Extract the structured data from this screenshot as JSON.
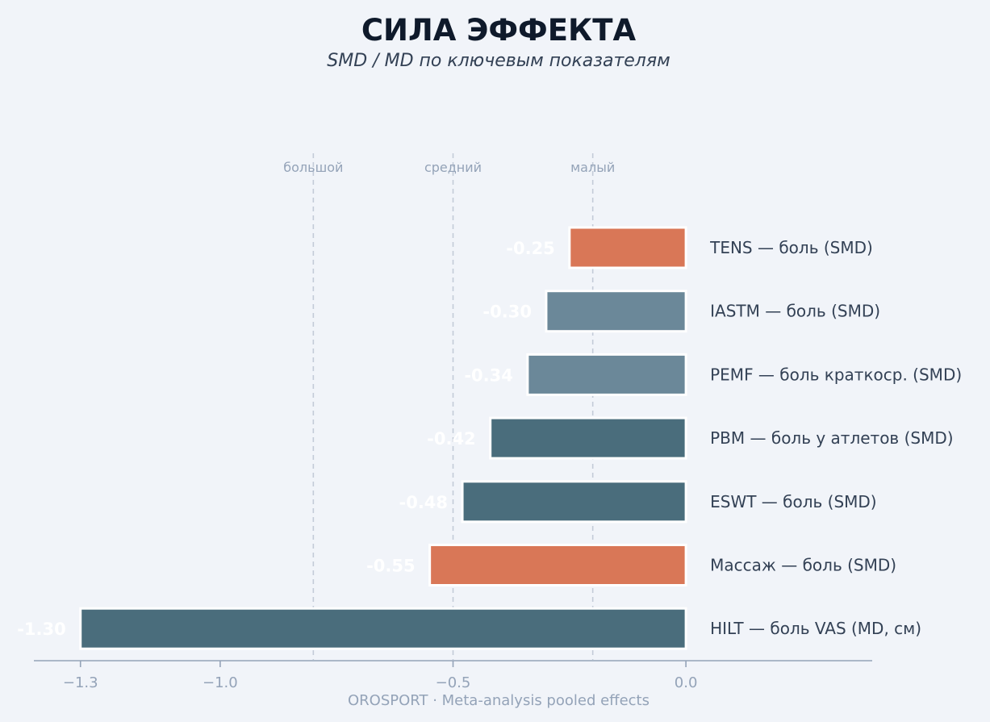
{
  "chart_data": {
    "type": "bar",
    "orientation": "horizontal",
    "title": "СИЛА ЭФФЕКТА",
    "subtitle": "SMD / MD по ключевым показателям",
    "categories": [
      "TENS — боль (SMD)",
      "IASTM — боль (SMD)",
      "PEMF — боль краткоср. (SMD)",
      "PBM — боль у атлетов (SMD)",
      "ESWT — боль (SMD)",
      "Массаж — боль (SMD)",
      "HILT — боль VAS (MD, см)"
    ],
    "values": [
      -0.25,
      -0.3,
      -0.34,
      -0.42,
      -0.48,
      -0.55,
      -1.3
    ],
    "value_labels": [
      "-0.25",
      "-0.30",
      "-0.34",
      "-0.42",
      "-0.48",
      "-0.55",
      "-1.30"
    ],
    "colors": [
      "#d97757",
      "#6b8899",
      "#6b8899",
      "#4a6d7c",
      "#4a6d7c",
      "#d97757",
      "#4a6d7c"
    ],
    "xlim": [
      -1.4,
      0.4
    ],
    "xticks": [
      -1.3,
      -1.0,
      -0.5,
      0.0
    ],
    "xtick_labels": [
      "−1.3",
      "−1.0",
      "−0.5",
      "0.0"
    ],
    "reference_lines": [
      {
        "value": -0.8,
        "label": "большой"
      },
      {
        "value": -0.5,
        "label": "средний"
      },
      {
        "value": -0.2,
        "label": "малый"
      }
    ],
    "grid": false,
    "footer": "OROSPORT · Meta-analysis pooled effects"
  }
}
